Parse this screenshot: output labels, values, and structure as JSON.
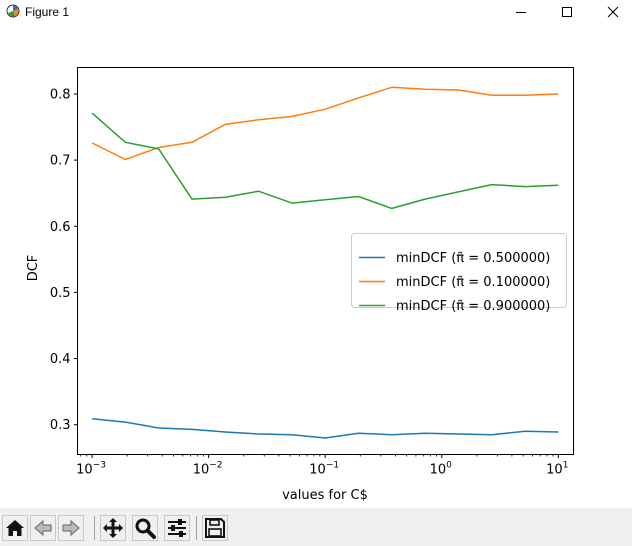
{
  "window": {
    "title": "Figure 1",
    "icon": "matplotlib-icon",
    "controls": [
      "minimize-icon",
      "maximize-icon",
      "close-icon"
    ]
  },
  "toolbar": {
    "buttons": [
      {
        "name": "home-button",
        "icon": "home-icon"
      },
      {
        "name": "back-button",
        "icon": "back-arrow-icon"
      },
      {
        "name": "forward-button",
        "icon": "forward-arrow-icon"
      },
      {
        "name": "pan-button",
        "icon": "move-icon"
      },
      {
        "name": "zoom-button",
        "icon": "magnifier-icon"
      },
      {
        "name": "configure-subplots-button",
        "icon": "sliders-icon"
      },
      {
        "name": "save-button",
        "icon": "floppy-disk-icon"
      }
    ]
  },
  "chart_data": {
    "type": "line",
    "title": "",
    "xlabel": "values for C$",
    "ylabel": "DCF",
    "xscale": "log",
    "xlim": [
      0.00075,
      13.5
    ],
    "ylim": [
      0.255,
      0.84
    ],
    "xticks": [
      {
        "value": 0.001,
        "label_base": "10",
        "label_exp": "−3"
      },
      {
        "value": 0.01,
        "label_base": "10",
        "label_exp": "−2"
      },
      {
        "value": 0.1,
        "label_base": "10",
        "label_exp": "−1"
      },
      {
        "value": 1,
        "label_base": "10",
        "label_exp": "0"
      },
      {
        "value": 10,
        "label_base": "10",
        "label_exp": "1"
      }
    ],
    "yticks": [
      {
        "value": 0.3,
        "label": "0.3"
      },
      {
        "value": 0.4,
        "label": "0.4"
      },
      {
        "value": 0.5,
        "label": "0.5"
      },
      {
        "value": 0.6,
        "label": "0.6"
      },
      {
        "value": 0.7,
        "label": "0.7"
      },
      {
        "value": 0.8,
        "label": "0.8"
      }
    ],
    "grid": false,
    "legend_position": "center-right",
    "x": [
      0.001,
      0.00193,
      0.00373,
      0.0072,
      0.0139,
      0.0268,
      0.0518,
      0.1,
      0.193,
      0.373,
      0.72,
      1.39,
      2.68,
      5.18,
      10
    ],
    "series": [
      {
        "name": "minDCF (π̃ = 0.500000)",
        "color": "#1f77b4",
        "values": [
          0.309,
          0.304,
          0.295,
          0.293,
          0.289,
          0.286,
          0.285,
          0.28,
          0.287,
          0.285,
          0.287,
          0.286,
          0.285,
          0.29,
          0.289
        ]
      },
      {
        "name": "minDCF (π̃ = 0.100000)",
        "color": "#ff7f0e",
        "values": [
          0.726,
          0.701,
          0.719,
          0.727,
          0.754,
          0.761,
          0.766,
          0.777,
          0.794,
          0.81,
          0.807,
          0.806,
          0.798,
          0.798,
          0.8
        ]
      },
      {
        "name": "minDCF (π̃ = 0.900000)",
        "color": "#2ca02c",
        "values": [
          0.771,
          0.727,
          0.717,
          0.641,
          0.644,
          0.653,
          0.635,
          0.64,
          0.645,
          0.627,
          0.641,
          0.652,
          0.663,
          0.66,
          0.662
        ]
      }
    ]
  }
}
